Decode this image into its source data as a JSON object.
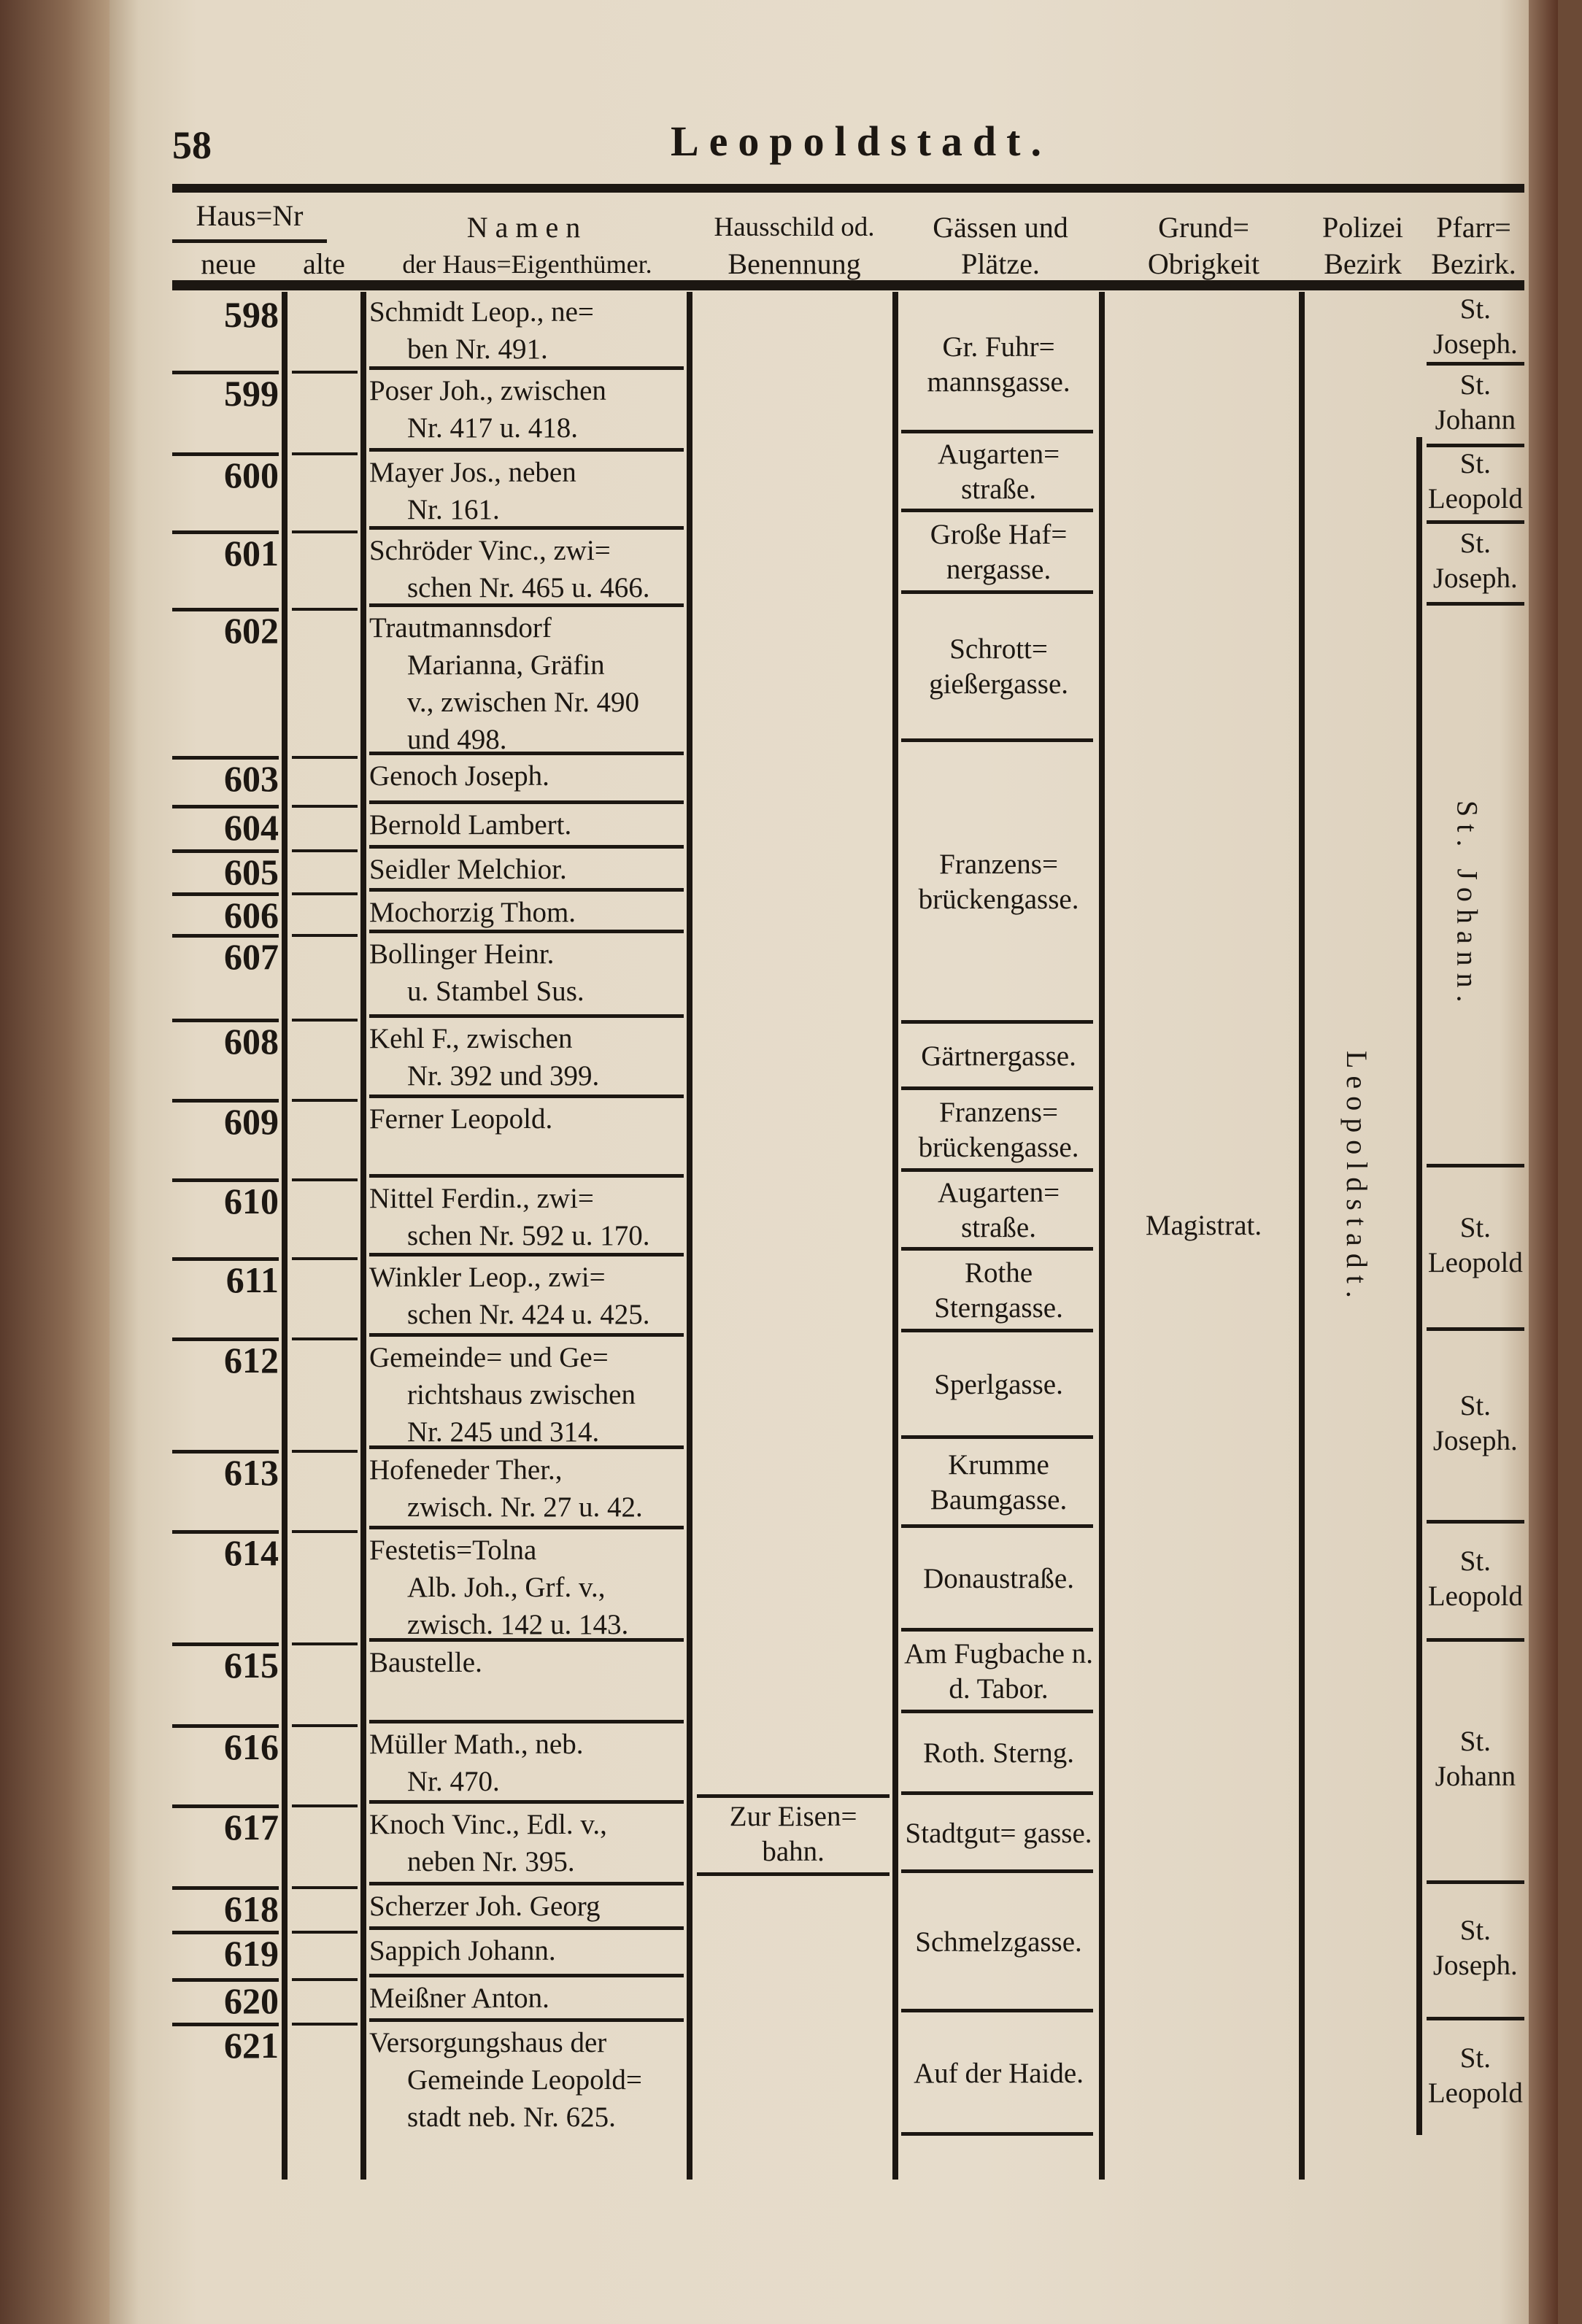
{
  "page_number": "58",
  "running_title": "Leopoldstadt.",
  "headers": {
    "haus_nr": "Haus=Nr",
    "neue": "neue",
    "alte": "alte",
    "namen": "Namen",
    "namen_sub": "der Haus=Eigenthümer.",
    "hausschild": "Hausschild od.",
    "hausschild_sub": "Benennung",
    "gassen": "Gässen und",
    "gassen_sub": "Plätze.",
    "grund": "Grund=",
    "grund_sub": "Obrigkeit",
    "polizei": "Polizei",
    "polizei_sub": "Bezirk",
    "pfarr": "Pfarr=",
    "pfarr_sub": "Bezirk."
  },
  "rows": [
    {
      "neue": "598",
      "alte": "",
      "name_lines": [
        "Schmidt Leop., ne=",
        "ben Nr. 491."
      ]
    },
    {
      "neue": "599",
      "alte": "",
      "name_lines": [
        "Poser Joh., zwischen",
        "Nr. 417 u. 418."
      ]
    },
    {
      "neue": "600",
      "alte": "",
      "name_lines": [
        "Mayer Jos., neben",
        "Nr. 161."
      ]
    },
    {
      "neue": "601",
      "alte": "",
      "name_lines": [
        "Schröder Vinc., zwi=",
        "schen Nr. 465 u. 466."
      ]
    },
    {
      "neue": "602",
      "alte": "",
      "name_lines": [
        "Trautmannsdorf",
        "Marianna, Gräfin",
        "v., zwischen Nr. 490",
        "und 498."
      ]
    },
    {
      "neue": "603",
      "alte": "",
      "name_lines": [
        "Genoch Joseph."
      ]
    },
    {
      "neue": "604",
      "alte": "",
      "name_lines": [
        "Bernold Lambert."
      ]
    },
    {
      "neue": "605",
      "alte": "",
      "name_lines": [
        "Seidler Melchior."
      ]
    },
    {
      "neue": "606",
      "alte": "",
      "name_lines": [
        "Mochorzig Thom."
      ]
    },
    {
      "neue": "607",
      "alte": "",
      "name_lines": [
        "Bollinger Heinr.",
        "u. Stambel Sus."
      ]
    },
    {
      "neue": "608",
      "alte": "",
      "name_lines": [
        "Kehl F., zwischen",
        "Nr. 392 und 399."
      ]
    },
    {
      "neue": "609",
      "alte": "",
      "name_lines": [
        "Ferner Leopold."
      ]
    },
    {
      "neue": "610",
      "alte": "",
      "name_lines": [
        "Nittel Ferdin., zwi=",
        "schen Nr. 592 u. 170."
      ]
    },
    {
      "neue": "611",
      "alte": "",
      "name_lines": [
        "Winkler Leop., zwi=",
        "schen Nr. 424 u. 425."
      ]
    },
    {
      "neue": "612",
      "alte": "",
      "name_lines": [
        "Gemeinde= und Ge=",
        "richtshaus zwischen",
        "Nr. 245 und 314."
      ]
    },
    {
      "neue": "613",
      "alte": "",
      "name_lines": [
        "Hofeneder Ther.,",
        "zwisch. Nr. 27 u. 42."
      ]
    },
    {
      "neue": "614",
      "alte": "",
      "name_lines": [
        "Festetis=Tolna",
        "Alb. Joh., Grf. v.,",
        "zwisch. 142 u. 143."
      ]
    },
    {
      "neue": "615",
      "alte": "",
      "name_lines": [
        "Baustelle."
      ]
    },
    {
      "neue": "616",
      "alte": "",
      "name_lines": [
        "Müller Math., neb.",
        "Nr. 470."
      ]
    },
    {
      "neue": "617",
      "alte": "",
      "name_lines": [
        "Knoch Vinc., Edl. v.,",
        "neben Nr. 395."
      ]
    },
    {
      "neue": "618",
      "alte": "",
      "name_lines": [
        "Scherzer Joh. Georg"
      ]
    },
    {
      "neue": "619",
      "alte": "",
      "name_lines": [
        "Sappich Johann."
      ]
    },
    {
      "neue": "620",
      "alte": "",
      "name_lines": [
        "Meißner Anton."
      ]
    },
    {
      "neue": "621",
      "alte": "",
      "name_lines": [
        "Versorgungshaus der",
        "Gemeinde Leopold=",
        "stadt neb. Nr. 625."
      ]
    }
  ],
  "hausschild": [
    {
      "rows": "617",
      "text": "Zur Eisen= bahn."
    }
  ],
  "gassen": [
    {
      "rows": "598-599",
      "text": "Gr. Fuhr= mannsgasse."
    },
    {
      "rows": "600",
      "text": "Augarten= straße."
    },
    {
      "rows": "601",
      "text": "Große Haf= nergasse."
    },
    {
      "rows": "602",
      "text": "Schrott= gießergasse."
    },
    {
      "rows": "603-607",
      "text": "Franzens= brückengasse."
    },
    {
      "rows": "608",
      "text": "Gärtnergasse."
    },
    {
      "rows": "609",
      "text": "Franzens= brückengasse."
    },
    {
      "rows": "610",
      "text": "Augarten= straße."
    },
    {
      "rows": "611",
      "text": "Rothe Sterngasse."
    },
    {
      "rows": "612",
      "text": "Sperlgasse."
    },
    {
      "rows": "613",
      "text": "Krumme Baumgasse."
    },
    {
      "rows": "614",
      "text": "Donaustraße."
    },
    {
      "rows": "615",
      "text": "Am Fugbache n. d. Tabor."
    },
    {
      "rows": "616",
      "text": "Roth. Sterng."
    },
    {
      "rows": "617",
      "text": "Stadtgut= gasse."
    },
    {
      "rows": "618-620",
      "text": "Schmelzgasse."
    },
    {
      "rows": "621",
      "text": "Auf der Haide."
    }
  ],
  "grund_obrigkeit": "Magistrat.",
  "polizei_bezirk": "Leopoldstadt.",
  "pfarr": [
    {
      "rows": "598",
      "text": "St. Joseph.",
      "vertical": false
    },
    {
      "rows": "599",
      "text": "St. Johann",
      "vertical": false
    },
    {
      "rows": "600",
      "text": "St. Leopold",
      "vertical": false
    },
    {
      "rows": "601",
      "text": "St. Joseph.",
      "vertical": false
    },
    {
      "rows": "602-609",
      "text": "St. Johann.",
      "vertical": true
    },
    {
      "rows": "610-611",
      "text": "St. Leopold",
      "vertical": false
    },
    {
      "rows": "612-613",
      "text": "St. Joseph.",
      "vertical": false
    },
    {
      "rows": "614",
      "text": "St. Leopold",
      "vertical": false
    },
    {
      "rows": "615-617",
      "text": "St. Johann",
      "vertical": false
    },
    {
      "rows": "618-620",
      "text": "St. Joseph.",
      "vertical": false
    },
    {
      "rows": "621",
      "text": "St. Leopold",
      "vertical": false
    }
  ]
}
